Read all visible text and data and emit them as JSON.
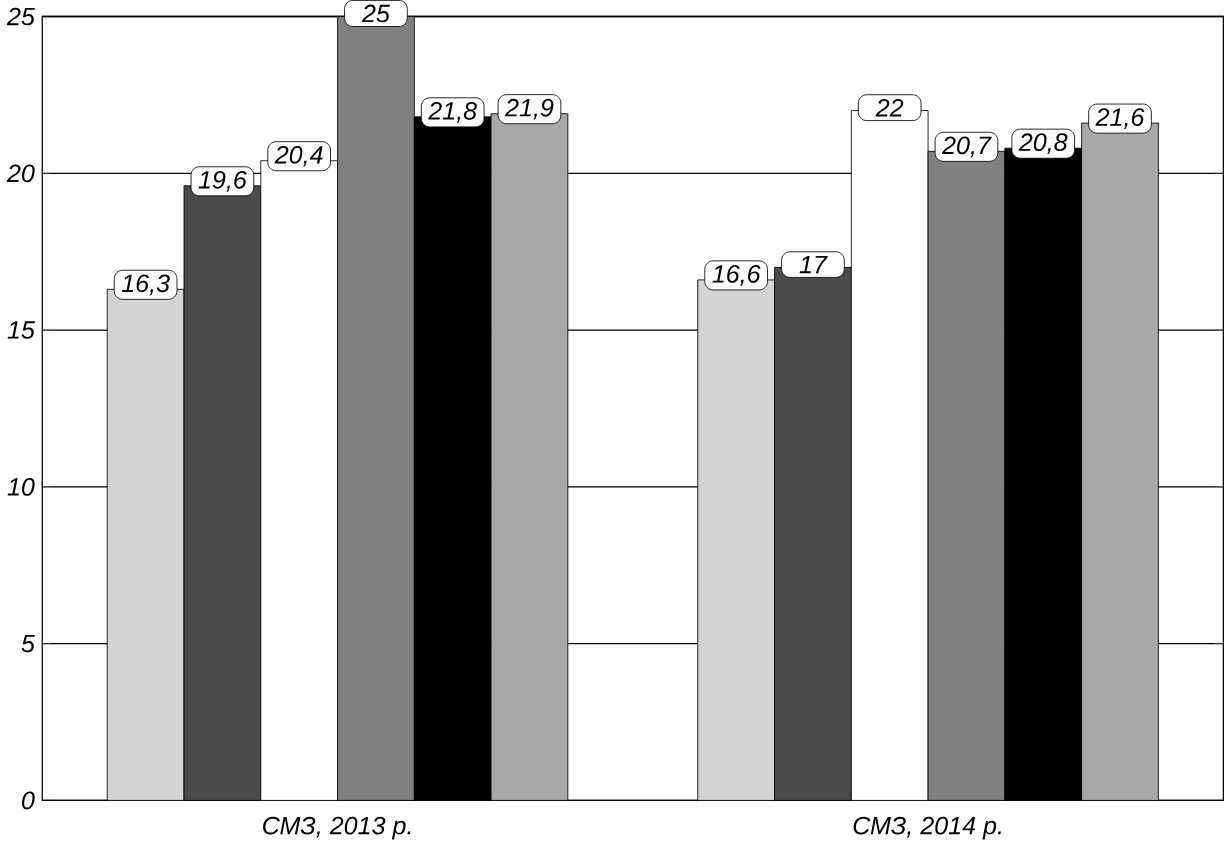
{
  "chart_data": {
    "type": "bar",
    "categories": [
      "СМЗ, 2013 р.",
      "СМЗ, 2014 р."
    ],
    "series": [
      {
        "color": "#d4d4d4",
        "values": [
          16.3,
          16.6
        ],
        "value_labels": [
          "16,3",
          "16,6"
        ]
      },
      {
        "color": "#4a4a4a",
        "values": [
          19.6,
          17
        ],
        "value_labels": [
          "19,6",
          "17"
        ]
      },
      {
        "color": "#ffffff",
        "values": [
          20.4,
          22
        ],
        "value_labels": [
          "20,4",
          "22"
        ]
      },
      {
        "color": "#808080",
        "values": [
          25,
          20.7
        ],
        "value_labels": [
          "25",
          "20,7"
        ]
      },
      {
        "color": "#000000",
        "values": [
          21.8,
          20.8
        ],
        "value_labels": [
          "21,8",
          "20,8"
        ]
      },
      {
        "color": "#a8a8a8",
        "values": [
          21.9,
          21.6
        ],
        "value_labels": [
          "21,9",
          "21,6"
        ]
      }
    ],
    "ylim": [
      0,
      25
    ],
    "yticks": [
      0,
      5,
      10,
      15,
      20,
      25
    ],
    "grid": "y"
  }
}
